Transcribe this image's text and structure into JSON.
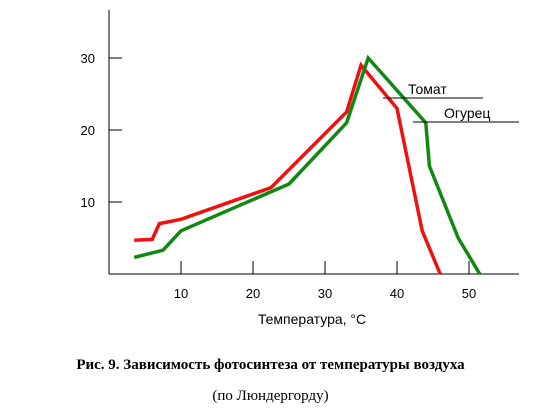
{
  "chart_data": {
    "type": "line",
    "title": "",
    "xlabel": "Температура, °C",
    "ylabel": "",
    "xlim": [
      0,
      55
    ],
    "ylim": [
      0,
      35
    ],
    "xticks": [
      10,
      20,
      30,
      40,
      50
    ],
    "yticks": [
      10,
      20,
      30
    ],
    "grid": false,
    "series": [
      {
        "name": "Томат",
        "color": "#ee1111",
        "x": [
          3.5,
          6,
          7,
          10,
          22.5,
          33,
          35,
          40,
          43.5,
          46
        ],
        "y": [
          4.7,
          4.8,
          7,
          7.6,
          12,
          22.5,
          29,
          23,
          6,
          0
        ]
      },
      {
        "name": "Огурец",
        "color": "#118811",
        "x": [
          3.5,
          7.5,
          10,
          25,
          33,
          36,
          44,
          44.5,
          48.5,
          51.5
        ],
        "y": [
          2.3,
          3.3,
          6,
          12.5,
          21,
          30,
          21,
          15,
          5,
          0
        ]
      }
    ]
  },
  "caption": {
    "line1": "Рис. 9. Зависимость  фотосинтеза от температуры воздуха",
    "line2": "(по Люндергорду)"
  }
}
